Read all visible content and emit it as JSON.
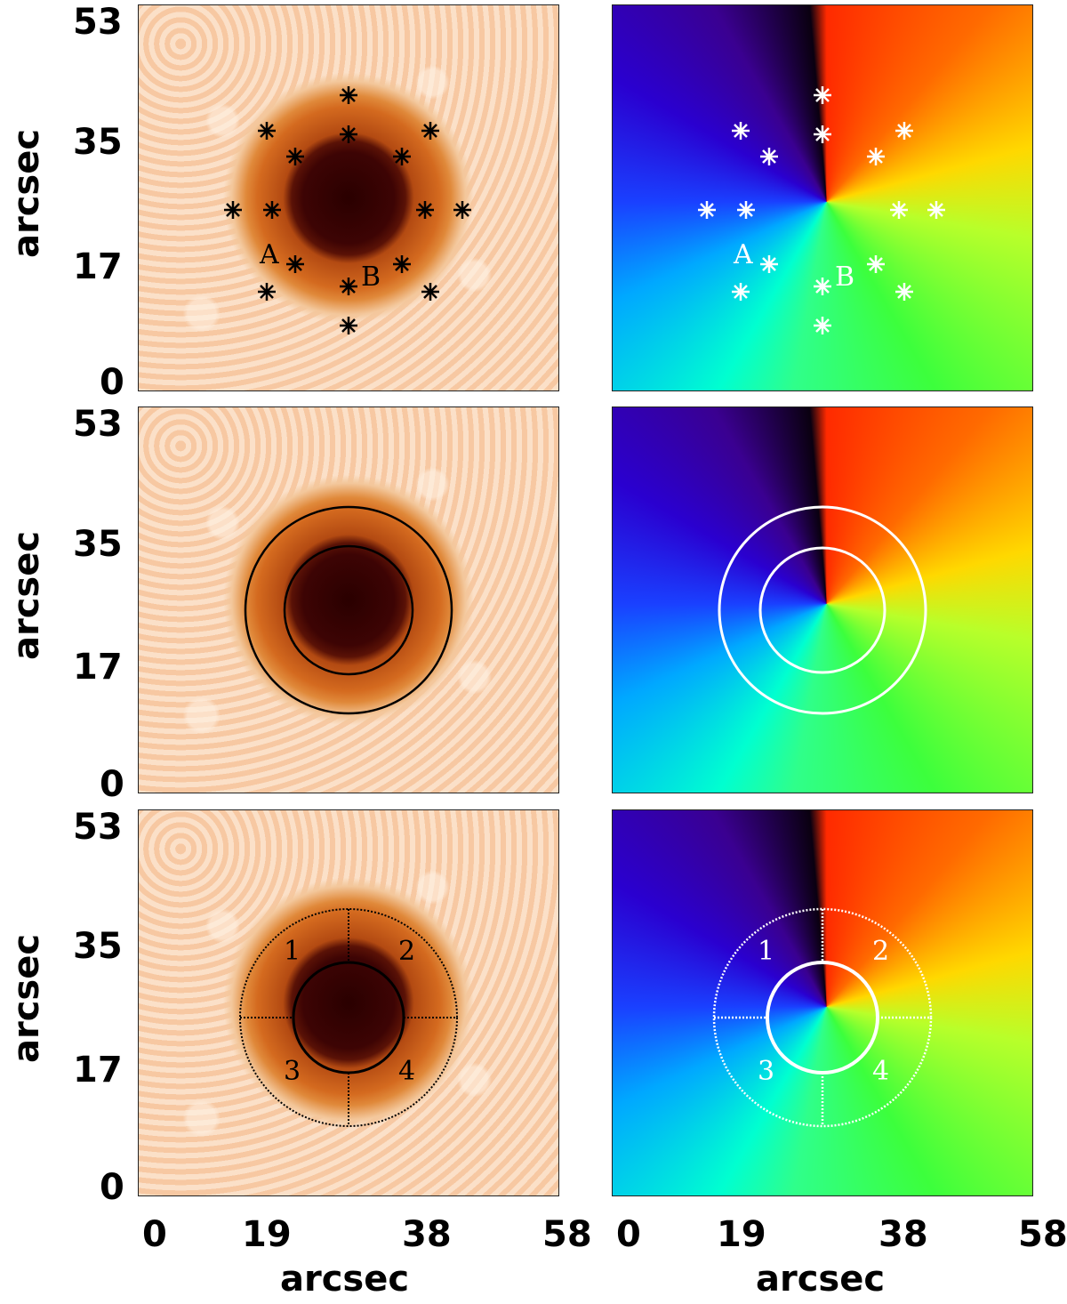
{
  "axes": {
    "y_label": "arcsec",
    "x_label": "arcsec",
    "y_ticks": [
      "53",
      "35",
      "17",
      "0"
    ],
    "x_ticks": [
      "0",
      "19",
      "38",
      "58"
    ]
  },
  "markers": {
    "A": "A",
    "B": "B"
  },
  "quadrants": [
    "1",
    "2",
    "3",
    "4"
  ],
  "colors": {
    "dark_ink": "#000000",
    "light_ink": "#ffffff"
  }
}
